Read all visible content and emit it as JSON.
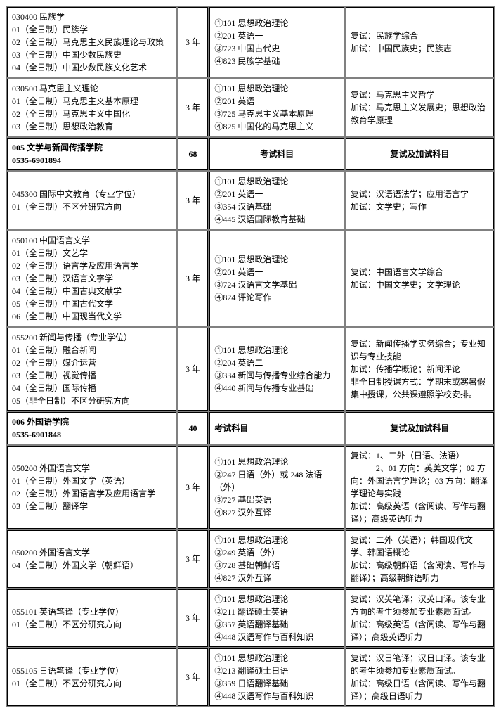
{
  "rows": [
    {
      "type": "data",
      "c1": "030400 民族学\n01（全日制）民族学\n02（全日制）马克思主义民族理论与政策\n03（全日制）中国少数民族史\n04（全日制）中国少数民族文化艺术",
      "c2": "3 年",
      "c3": "①101 思想政治理论\n②201 英语一\n③723 中国古代史\n④823 民族学基础",
      "c4": "复试：民族学综合\n加试：中国民族史；民族志"
    },
    {
      "type": "data",
      "c1": "030500 马克思主义理论\n01（全日制）马克思主义基本原理\n02（全日制）马克思主义中国化\n03（全日制）思想政治教育",
      "c2": "3 年",
      "c3": "①101 思想政治理论\n②201 英语一\n③725 马克思主义基本原理\n④825 中国化的马克思主义",
      "c4": "复试：马克思主义哲学\n加试：马克思主义发展史；思想政治教育学原理"
    },
    {
      "type": "header",
      "c1": "005 文学与新闻传播学院\n0535-6901894",
      "c2": "68",
      "c3": "考试科目",
      "c3_center": true,
      "c4": "复试及加试科目"
    },
    {
      "type": "data",
      "c1": "045300 国际中文教育（专业学位）\n01（全日制）不区分研究方向",
      "c2": "3 年",
      "c3": "①101 思想政治理论\n②201 英语一\n③354 汉语基础\n④445 汉语国际教育基础",
      "c4": "复试：汉语语法学；应用语言学\n加试：文学史；写作"
    },
    {
      "type": "data",
      "c1": "050100 中国语言文学\n01（全日制）文艺学\n02（全日制）语言学及应用语言学\n03（全日制）汉语言文字学\n04（全日制）中国古典文献学\n05（全日制）中国古代文学\n06（全日制）中国现当代文学",
      "c2": "3 年",
      "c3": "①101 思想政治理论\n②201 英语一\n③724 汉语言文学基础\n④824 评论写作",
      "c4": "复试：中国语言文学综合\n加试：中国文学史；文学理论"
    },
    {
      "type": "data",
      "c1": "055200 新闻与传播（专业学位）\n01（全日制）融合新闻\n02（全日制）媒介运营\n03（全日制）视觉传播\n04（全日制）国际传播\n05（非全日制）不区分研究方向",
      "c2": "3 年",
      "c3": "①101 思想政治理论\n②204 英语二\n③334 新闻与传播专业综合能力\n④440 新闻与传播专业基础",
      "c4": "复试：新闻传播学实务综合；专业知识与专业技能\n加试：传播学概论；新闻评论\n非全日制授课方式：学期末或寒暑假集中授课，公共课遵照学校安排。"
    },
    {
      "type": "header",
      "c1": "006 外国语学院\n0535-6901848",
      "c2": "40",
      "c3": "考试科目",
      "c3_center": false,
      "c4": "复试及加试科目"
    },
    {
      "type": "data",
      "c1": "050200 外国语言文学\n01（全日制）外国文学（英语）\n02（全日制）外国语言学及应用语言学\n03（全日制）翻译学",
      "c2": "3 年",
      "c3": "①101 思想政治理论\n②247 日语（外）或 248 法语（外）\n③727 基础英语\n④827 汉外互译",
      "c4": "复试：1、二外（日语、法语）\n　　　2、01 方向：英美文学；02 方向：外国语言学理论；03 方向：翻译学理论与实践\n加试：高级英语（含阅读、写作与翻译）；高级英语听力"
    },
    {
      "type": "data",
      "c1": "050200 外国语言文学\n04（全日制）外国文学（朝鲜语）",
      "c2": "3 年",
      "c3": "①101 思想政治理论\n②249 英语（外）\n③728 基础朝鲜语\n④827 汉外互译",
      "c4": "复试：二外（英语）；韩国现代文学、韩国语概论\n加试：高级朝鲜语（含阅读、写作与翻译）；高级朝鲜语听力"
    },
    {
      "type": "data",
      "c1": "055101 英语笔译（专业学位）\n01（全日制）不区分研究方向",
      "c2": "3 年",
      "c3": "①101 思想政治理论\n②211 翻译硕士英语\n③357 英语翻译基础\n④448 汉语写作与百科知识",
      "c4": "复试：汉英笔译；汉英口译。该专业方向的考生须参加专业素质面试。\n加试：高级英语（含阅读、写作与翻译）；高级英语听力"
    },
    {
      "type": "data",
      "c1": "055105 日语笔译（专业学位）\n01（全日制）不区分研究方向",
      "c2": "3 年",
      "c3": "①101 思想政治理论\n②213 翻译硕士日语\n③359 日语翻译基础\n④448 汉语写作与百科知识",
      "c4": "复试：汉日笔译；汉日口译。该专业的考生须参加专业素质面试。\n加试：高级日语（含阅读、写作与翻译）；高级日语听力"
    }
  ]
}
